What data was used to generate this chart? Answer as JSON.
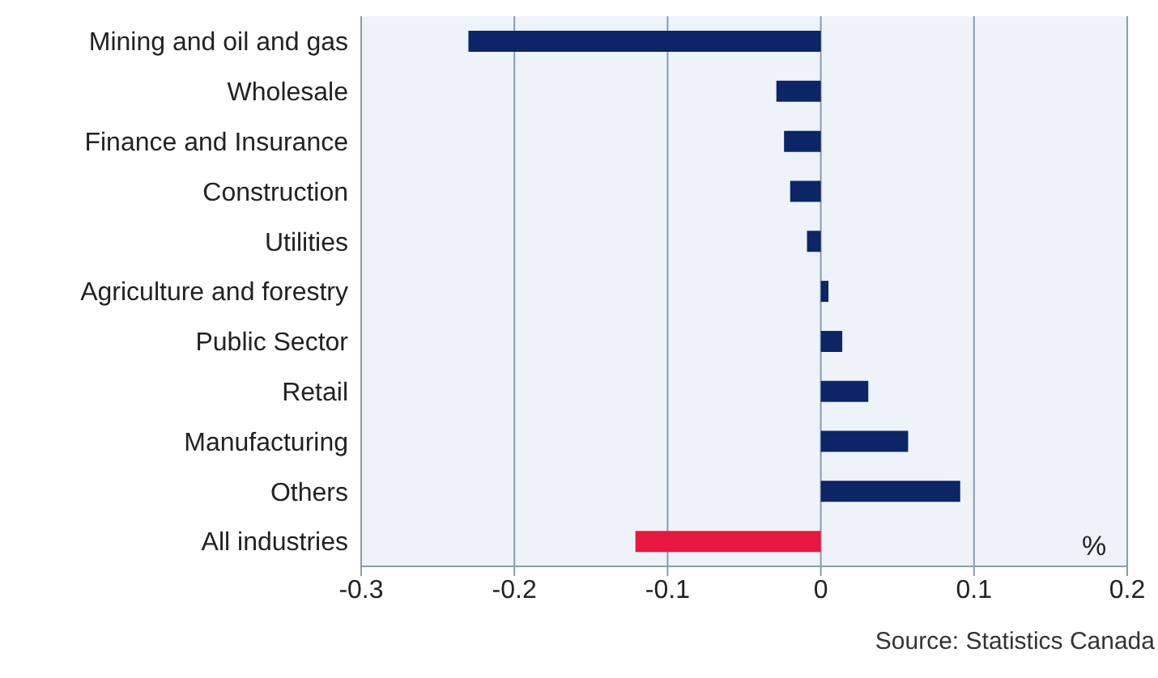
{
  "chart_data": {
    "type": "bar",
    "orientation": "horizontal",
    "xlabel": "%",
    "categories": [
      "Mining and oil and gas",
      "Wholesale",
      "Finance and Insurance",
      "Construction",
      "Utilities",
      "Agriculture and forestry",
      "Public Sector",
      "Retail",
      "Manufacturing",
      "Others",
      "All industries"
    ],
    "values": [
      -0.23,
      -0.029,
      -0.024,
      -0.02,
      -0.009,
      0.005,
      0.014,
      0.031,
      0.057,
      0.091,
      -0.121
    ],
    "colors": [
      "#0b2566",
      "#0b2566",
      "#0b2566",
      "#0b2566",
      "#0b2566",
      "#0b2566",
      "#0b2566",
      "#0b2566",
      "#0b2566",
      "#0b2566",
      "#e8173f"
    ],
    "xlim": [
      -0.3,
      0.2
    ],
    "xticks": [
      -0.3,
      -0.2,
      -0.1,
      0,
      0.1,
      0.2
    ],
    "grid": "x",
    "legend": false,
    "annotations": [
      "Source: Statistics Canada"
    ]
  }
}
